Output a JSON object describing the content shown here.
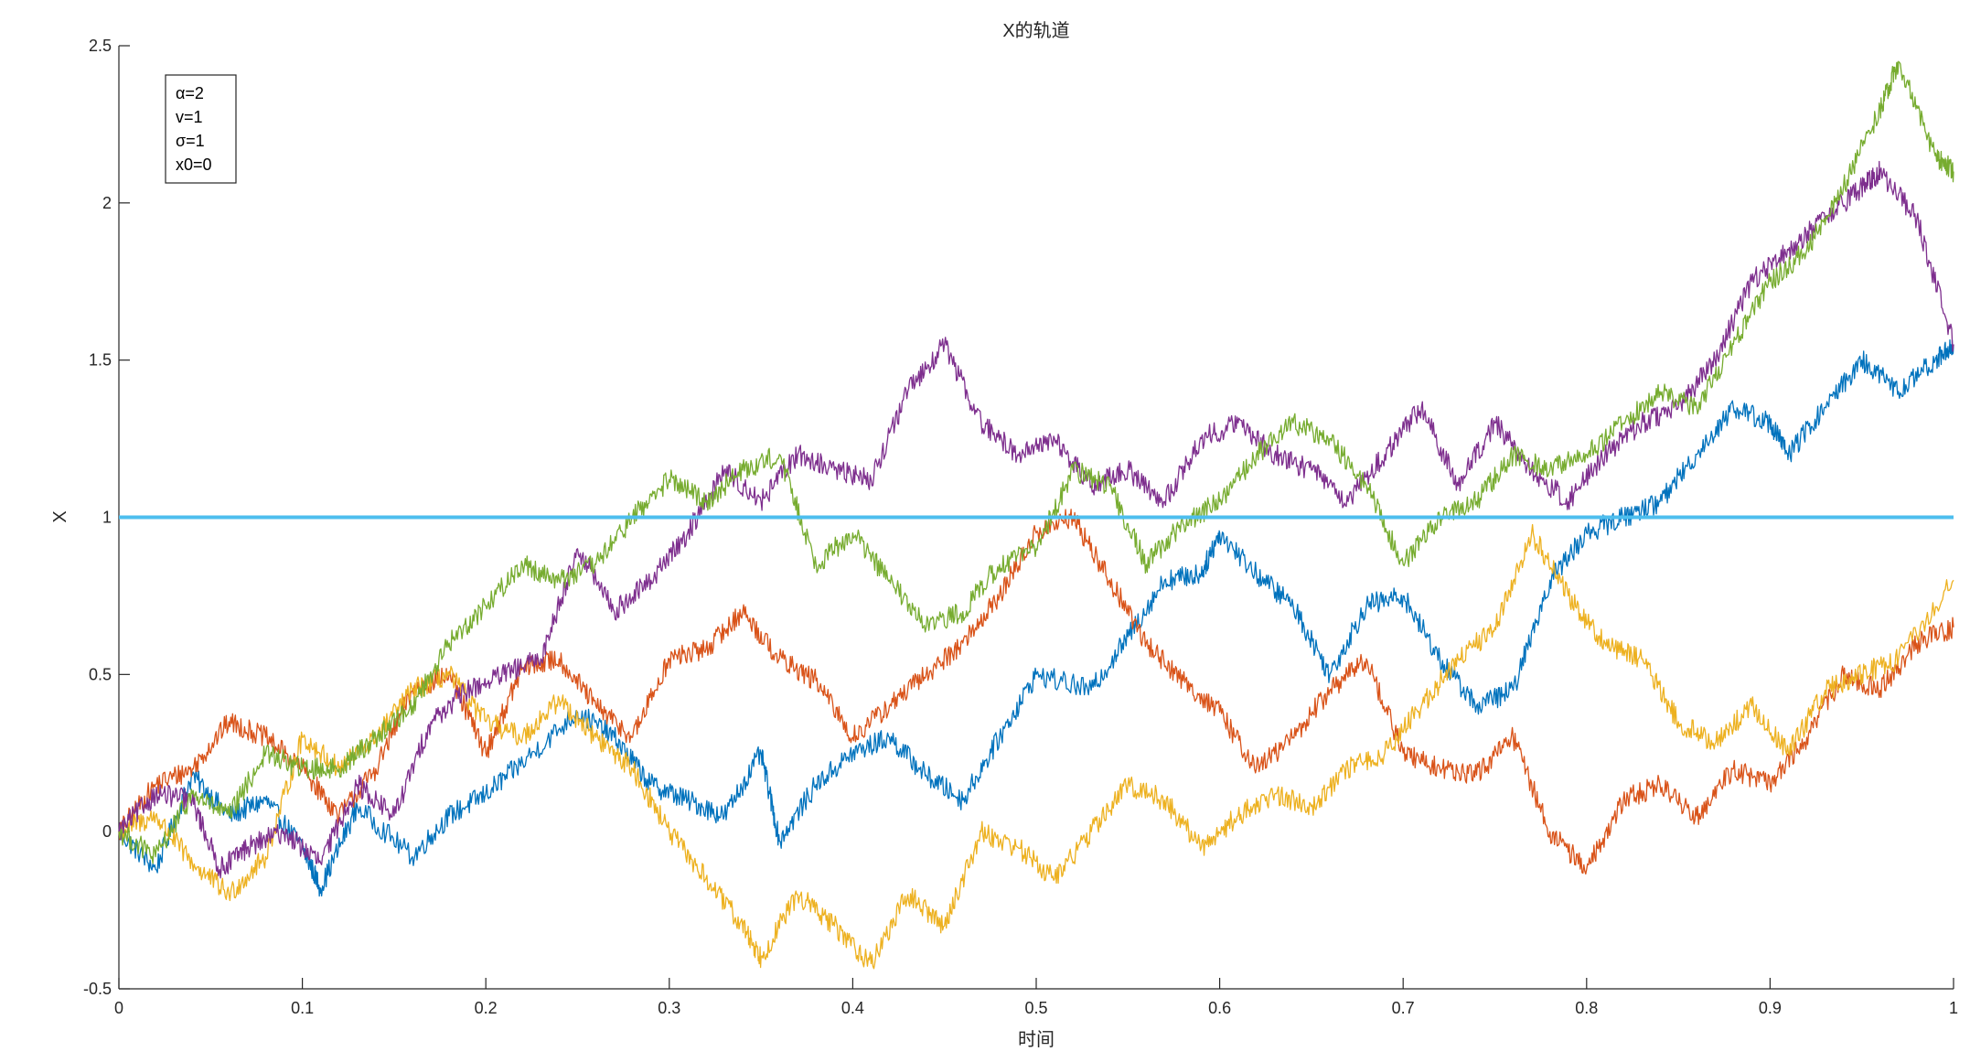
{
  "chart_data": {
    "type": "line",
    "title": "X的轨道",
    "xlabel": "时间",
    "ylabel": "X",
    "xlim": [
      0,
      1
    ],
    "ylim": [
      -0.5,
      2.5
    ],
    "xticks": [
      0,
      0.1,
      0.2,
      0.3,
      0.4,
      0.5,
      0.6,
      0.7,
      0.8,
      0.9,
      1
    ],
    "yticks": [
      -0.5,
      0,
      0.5,
      1,
      1.5,
      2,
      2.5
    ],
    "xtick_labels": [
      "0",
      "0.1",
      "0.2",
      "0.3",
      "0.4",
      "0.5",
      "0.6",
      "0.7",
      "0.8",
      "0.9",
      "1"
    ],
    "ytick_labels": [
      "-0.5",
      "0",
      "0.5",
      "1",
      "1.5",
      "2",
      "2.5"
    ],
    "grid": false,
    "legend_position": "top-left",
    "annotation_lines": [
      "α=2",
      "v=1",
      "σ=1",
      "x0=0"
    ],
    "reference_line": {
      "y": 1,
      "color": "#4DBEEE"
    },
    "series": [
      {
        "color": "#0072BD",
        "x": [
          0,
          0.02,
          0.04,
          0.06,
          0.08,
          0.1,
          0.11,
          0.13,
          0.16,
          0.18,
          0.2,
          0.22,
          0.25,
          0.27,
          0.29,
          0.31,
          0.33,
          0.35,
          0.36,
          0.38,
          0.4,
          0.42,
          0.44,
          0.46,
          0.48,
          0.5,
          0.53,
          0.55,
          0.57,
          0.59,
          0.6,
          0.62,
          0.64,
          0.66,
          0.68,
          0.7,
          0.72,
          0.74,
          0.76,
          0.78,
          0.8,
          0.82,
          0.84,
          0.86,
          0.88,
          0.9,
          0.91,
          0.93,
          0.95,
          0.97,
          0.99,
          1.0
        ],
        "y": [
          0,
          -0.12,
          0.18,
          0.05,
          0.1,
          -0.05,
          -0.18,
          0.08,
          -0.08,
          0.05,
          0.12,
          0.22,
          0.38,
          0.3,
          0.15,
          0.1,
          0.05,
          0.25,
          -0.03,
          0.15,
          0.25,
          0.3,
          0.18,
          0.1,
          0.3,
          0.5,
          0.45,
          0.62,
          0.8,
          0.82,
          0.95,
          0.82,
          0.72,
          0.5,
          0.72,
          0.75,
          0.55,
          0.4,
          0.45,
          0.8,
          0.95,
          1.0,
          1.05,
          1.2,
          1.35,
          1.3,
          1.2,
          1.35,
          1.5,
          1.4,
          1.5,
          1.55
        ]
      },
      {
        "color": "#D95319",
        "x": [
          0,
          0.02,
          0.04,
          0.06,
          0.08,
          0.1,
          0.12,
          0.14,
          0.16,
          0.18,
          0.2,
          0.22,
          0.24,
          0.26,
          0.28,
          0.3,
          0.32,
          0.34,
          0.36,
          0.38,
          0.4,
          0.42,
          0.44,
          0.46,
          0.48,
          0.5,
          0.52,
          0.54,
          0.56,
          0.58,
          0.6,
          0.62,
          0.64,
          0.66,
          0.68,
          0.7,
          0.72,
          0.74,
          0.76,
          0.78,
          0.8,
          0.82,
          0.84,
          0.86,
          0.88,
          0.9,
          0.92,
          0.94,
          0.96,
          0.98,
          1.0
        ],
        "y": [
          0,
          0.15,
          0.2,
          0.35,
          0.3,
          0.2,
          0.05,
          0.2,
          0.45,
          0.5,
          0.25,
          0.52,
          0.55,
          0.4,
          0.3,
          0.55,
          0.58,
          0.7,
          0.55,
          0.48,
          0.3,
          0.4,
          0.5,
          0.6,
          0.75,
          0.95,
          1.0,
          0.8,
          0.6,
          0.48,
          0.38,
          0.2,
          0.3,
          0.45,
          0.55,
          0.25,
          0.2,
          0.18,
          0.3,
          0.0,
          -0.12,
          0.1,
          0.15,
          0.05,
          0.2,
          0.15,
          0.3,
          0.5,
          0.45,
          0.6,
          0.65
        ]
      },
      {
        "color": "#EDB120",
        "x": [
          0,
          0.02,
          0.04,
          0.06,
          0.08,
          0.1,
          0.12,
          0.14,
          0.16,
          0.18,
          0.2,
          0.22,
          0.24,
          0.26,
          0.28,
          0.3,
          0.32,
          0.34,
          0.35,
          0.37,
          0.39,
          0.41,
          0.43,
          0.45,
          0.47,
          0.49,
          0.51,
          0.53,
          0.55,
          0.57,
          0.59,
          0.61,
          0.63,
          0.65,
          0.67,
          0.69,
          0.71,
          0.73,
          0.75,
          0.77,
          0.79,
          0.81,
          0.83,
          0.85,
          0.87,
          0.89,
          0.91,
          0.93,
          0.95,
          0.97,
          1.0
        ],
        "y": [
          0,
          0.05,
          -0.1,
          -0.2,
          -0.08,
          0.3,
          0.2,
          0.3,
          0.45,
          0.5,
          0.35,
          0.3,
          0.42,
          0.3,
          0.2,
          0.0,
          -0.15,
          -0.3,
          -0.4,
          -0.2,
          -0.3,
          -0.42,
          -0.2,
          -0.3,
          0.0,
          -0.05,
          -0.15,
          0.0,
          0.15,
          0.1,
          -0.05,
          0.05,
          0.12,
          0.08,
          0.2,
          0.25,
          0.4,
          0.55,
          0.65,
          0.95,
          0.75,
          0.6,
          0.55,
          0.35,
          0.28,
          0.4,
          0.25,
          0.45,
          0.5,
          0.55,
          0.8
        ]
      },
      {
        "color": "#7E2F8E",
        "x": [
          0,
          0.02,
          0.04,
          0.055,
          0.07,
          0.09,
          0.11,
          0.13,
          0.15,
          0.17,
          0.19,
          0.21,
          0.23,
          0.25,
          0.27,
          0.29,
          0.31,
          0.33,
          0.35,
          0.37,
          0.39,
          0.41,
          0.43,
          0.45,
          0.47,
          0.49,
          0.51,
          0.53,
          0.55,
          0.57,
          0.59,
          0.61,
          0.63,
          0.65,
          0.67,
          0.69,
          0.71,
          0.73,
          0.75,
          0.77,
          0.79,
          0.81,
          0.83,
          0.85,
          0.87,
          0.89,
          0.91,
          0.93,
          0.95,
          0.96,
          0.98,
          1.0
        ],
        "y": [
          0,
          0.12,
          0.1,
          -0.12,
          -0.05,
          0.0,
          -0.1,
          0.15,
          0.05,
          0.35,
          0.45,
          0.5,
          0.55,
          0.9,
          0.7,
          0.8,
          0.95,
          1.15,
          1.05,
          1.2,
          1.15,
          1.12,
          1.4,
          1.55,
          1.3,
          1.2,
          1.25,
          1.1,
          1.15,
          1.05,
          1.25,
          1.3,
          1.2,
          1.15,
          1.05,
          1.2,
          1.35,
          1.1,
          1.3,
          1.15,
          1.05,
          1.2,
          1.3,
          1.35,
          1.5,
          1.75,
          1.85,
          1.95,
          2.05,
          2.1,
          1.95,
          1.55
        ]
      },
      {
        "color": "#77AC30",
        "x": [
          0,
          0.02,
          0.04,
          0.06,
          0.08,
          0.1,
          0.12,
          0.14,
          0.16,
          0.18,
          0.2,
          0.22,
          0.24,
          0.26,
          0.28,
          0.3,
          0.32,
          0.34,
          0.36,
          0.38,
          0.4,
          0.42,
          0.44,
          0.46,
          0.48,
          0.5,
          0.52,
          0.54,
          0.56,
          0.58,
          0.6,
          0.62,
          0.64,
          0.66,
          0.68,
          0.7,
          0.72,
          0.74,
          0.76,
          0.78,
          0.8,
          0.82,
          0.84,
          0.86,
          0.88,
          0.9,
          0.92,
          0.94,
          0.96,
          0.97,
          0.99,
          1.0
        ],
        "y": [
          0,
          -0.08,
          0.12,
          0.05,
          0.25,
          0.2,
          0.2,
          0.3,
          0.4,
          0.6,
          0.72,
          0.85,
          0.8,
          0.85,
          1.0,
          1.12,
          1.05,
          1.15,
          1.2,
          0.85,
          0.95,
          0.8,
          0.65,
          0.7,
          0.85,
          0.9,
          1.15,
          1.1,
          0.85,
          0.98,
          1.05,
          1.2,
          1.3,
          1.25,
          1.1,
          0.85,
          1.0,
          1.05,
          1.2,
          1.15,
          1.2,
          1.3,
          1.4,
          1.35,
          1.55,
          1.75,
          1.85,
          2.05,
          2.3,
          2.45,
          2.15,
          2.1
        ]
      }
    ]
  }
}
